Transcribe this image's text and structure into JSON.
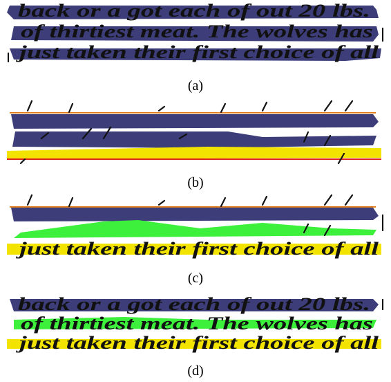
{
  "handwriting": {
    "lines": [
      "back or a got each of out 20 lbs.",
      "of thirtiest meat. The wolves has",
      "just taken their first choice of all"
    ]
  },
  "panels": [
    {
      "label": "(a)"
    },
    {
      "label": "(b)"
    },
    {
      "label": "(c)"
    },
    {
      "label": "(d)"
    }
  ]
}
